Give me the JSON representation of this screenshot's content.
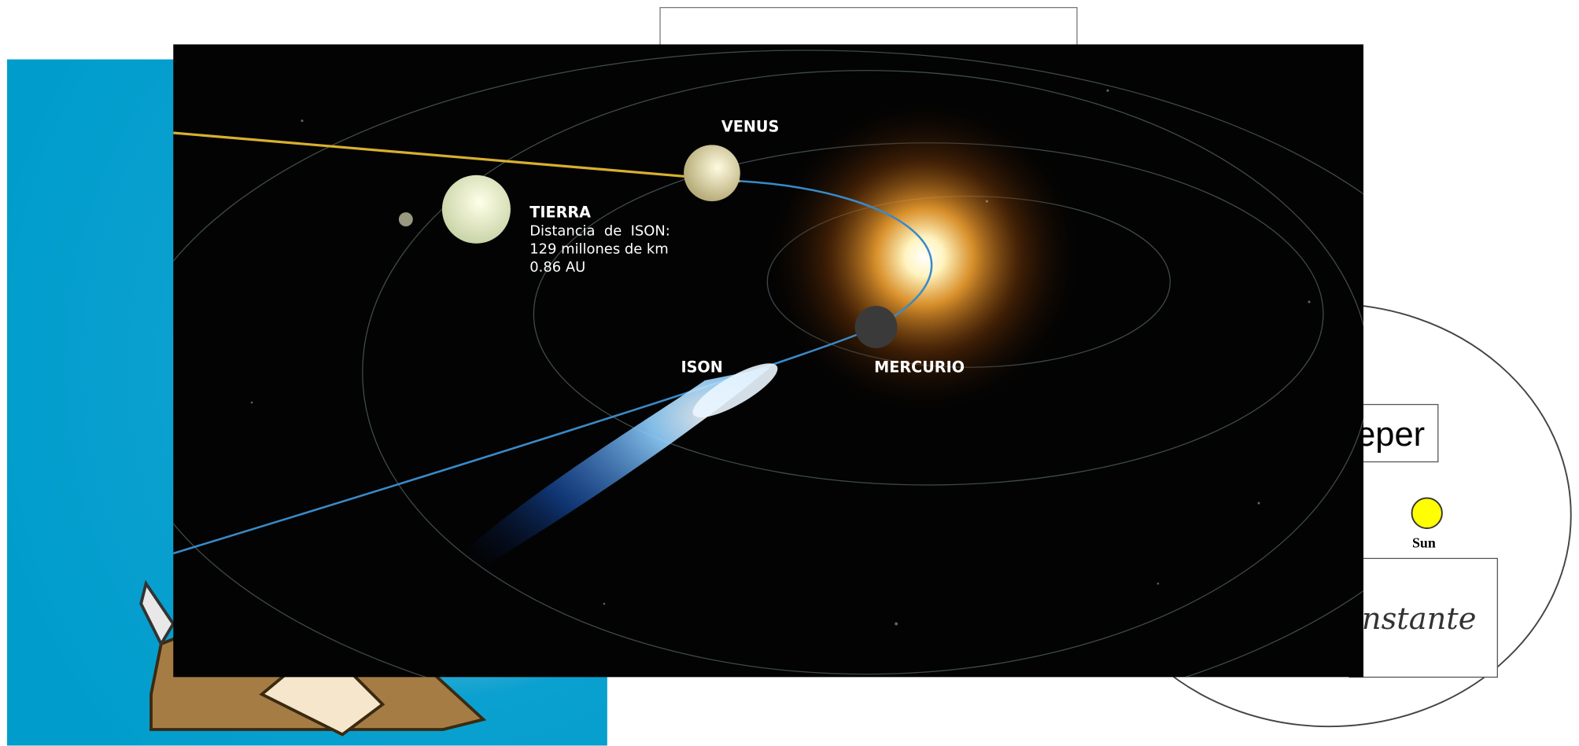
{
  "space_image": {
    "venus": "VENUS",
    "tierra": "TIERRA",
    "distance_lines": [
      "Distancia  de  ISON:",
      "129 millones de km",
      "0.86 AU"
    ],
    "ison": "ISON",
    "mercurio": "MERCURIO"
  },
  "diagram": {
    "kepler_box": "eper",
    "sun": "Sun",
    "formula_box": "nstante"
  }
}
